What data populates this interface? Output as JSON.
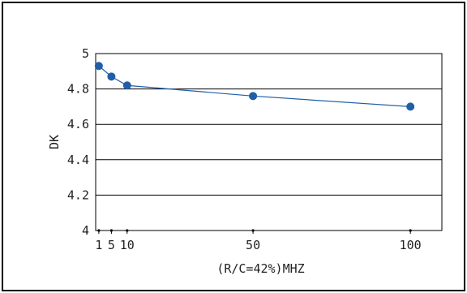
{
  "chart_data": {
    "type": "line",
    "xlabel": "(R/C=42%)MHZ",
    "ylabel": "DK",
    "ylim": [
      4,
      5
    ],
    "xlim": [
      0,
      110
    ],
    "y_ticks": [
      "4",
      "4.2",
      "4.4",
      "4.6",
      "4.8",
      "5"
    ],
    "x_ticks": [
      "1",
      "5",
      "10",
      "50",
      "100"
    ],
    "grid": "horizontal",
    "series": [
      {
        "x": [
          1,
          5,
          10,
          50,
          100
        ],
        "y": [
          4.93,
          4.87,
          4.82,
          4.76,
          4.7
        ]
      }
    ],
    "colors": {
      "line": "#1f5fa8",
      "marker": "#1f5fa8",
      "grid": "#000000",
      "frame": "#000000"
    }
  }
}
